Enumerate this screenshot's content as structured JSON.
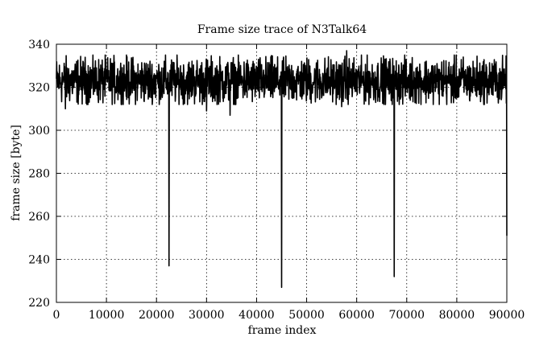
{
  "chart_data": {
    "type": "line",
    "title": "Frame size trace of N3Talk64",
    "xlabel": "frame index",
    "ylabel": "frame size [byte]",
    "xlim": [
      0,
      90000
    ],
    "ylim": [
      220,
      340
    ],
    "xticks": [
      0,
      10000,
      20000,
      30000,
      40000,
      50000,
      60000,
      70000,
      80000,
      90000
    ],
    "yticks": [
      220,
      240,
      260,
      280,
      300,
      320,
      340
    ],
    "grid": true,
    "grid_style": "dotted",
    "line_color": "#000000",
    "series": [
      {
        "baseline_mean": 323,
        "typical_range": [
          312,
          335
        ],
        "max_observed": 337,
        "dips": [
          {
            "x": 22500,
            "y": 237
          },
          {
            "x": 45000,
            "y": 227
          },
          {
            "x": 67500,
            "y": 232
          },
          {
            "x": 90000,
            "y": 251
          }
        ],
        "minor_dips": [
          {
            "x": 1800,
            "y": 310
          },
          {
            "x": 30000,
            "y": 309
          },
          {
            "x": 34700,
            "y": 307
          },
          {
            "x": 57000,
            "y": 311
          }
        ]
      }
    ]
  }
}
